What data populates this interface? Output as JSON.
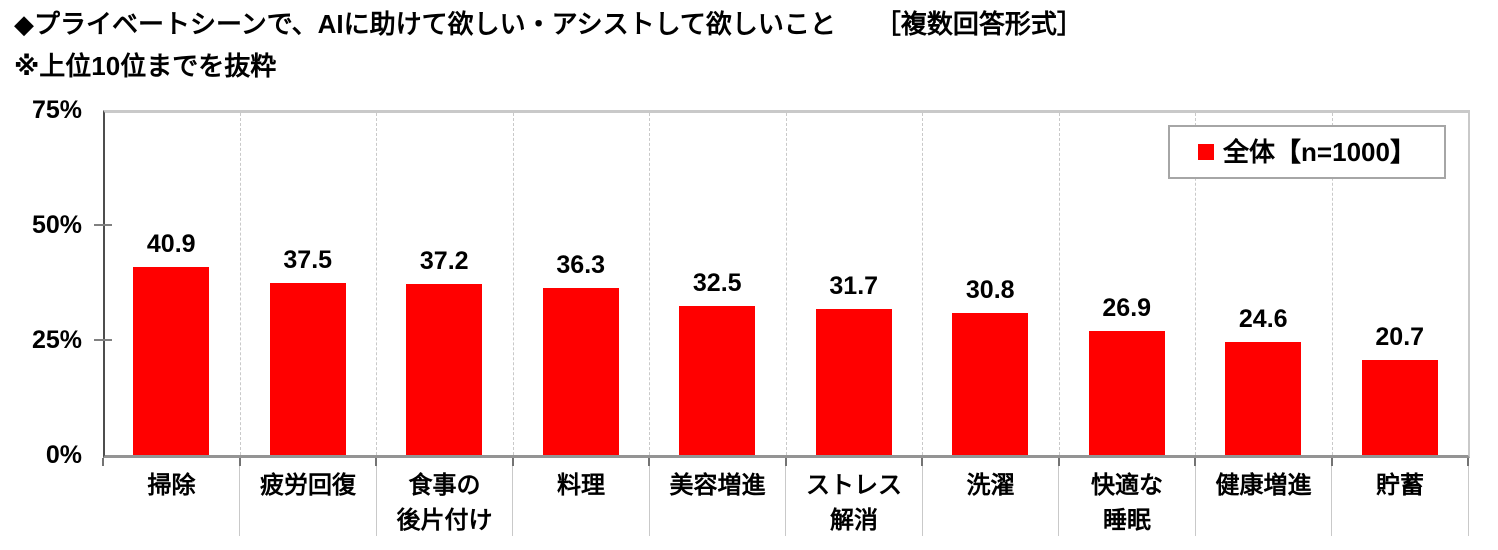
{
  "header": {
    "title": "◆プライベートシーンで、AIに助けて欲しい・アシストして欲しいこと　　［複数回答形式］",
    "subtitle": "※上位10位までを抜粋"
  },
  "legend": {
    "label": "全体【n=1000】",
    "swatch_color": "#ff0000"
  },
  "chart_data": {
    "type": "bar",
    "title": "プライベートシーンで、AIに助けて欲しい・アシストして欲しいこと［複数回答形式］",
    "subtitle": "上位10位までを抜粋",
    "categories": [
      "掃除",
      "疲労回復",
      "食事の\n後片付け",
      "料理",
      "美容増進",
      "ストレス\n解消",
      "洗濯",
      "快適な\n睡眠",
      "健康増進",
      "貯蓄"
    ],
    "series": [
      {
        "name": "全体【n=1000】",
        "values": [
          40.9,
          37.5,
          37.2,
          36.3,
          32.5,
          31.7,
          30.8,
          26.9,
          24.6,
          20.7
        ]
      }
    ],
    "xlabel": "",
    "ylabel": "",
    "ylim": [
      0,
      75
    ],
    "ytick_values": [
      0,
      25,
      50,
      75
    ],
    "ytick_labels": [
      "0%",
      "25%",
      "50%",
      "75%"
    ],
    "bar_color": "#ff0000",
    "grid": "vertical-dashed-category-separators",
    "legend_position": "top-right"
  }
}
